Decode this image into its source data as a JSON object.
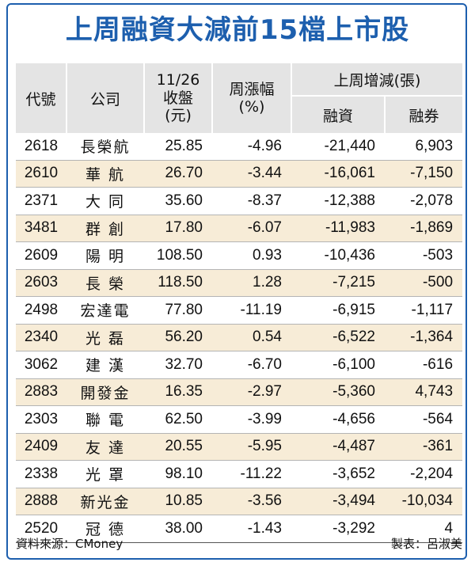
{
  "title": "上周融資大減前15檔上市股",
  "headers": {
    "code": "代號",
    "company": "公司",
    "close_line1": "11/26",
    "close_line2": "收盤",
    "close_line3": "(元)",
    "change_line1": "周漲幅",
    "change_line2": "(%)",
    "weekly_group": "上周增減(張)",
    "margin": "融資",
    "short": "融券"
  },
  "rows": [
    {
      "code": "2618",
      "company": "長榮航",
      "close": "25.85",
      "change": "-4.96",
      "margin": "-21,440",
      "short": "6,903"
    },
    {
      "code": "2610",
      "company": "華 航",
      "close": "26.70",
      "change": "-3.44",
      "margin": "-16,061",
      "short": "-7,150"
    },
    {
      "code": "2371",
      "company": "大 同",
      "close": "35.60",
      "change": "-8.37",
      "margin": "-12,388",
      "short": "-2,078"
    },
    {
      "code": "3481",
      "company": "群 創",
      "close": "17.80",
      "change": "-6.07",
      "margin": "-11,983",
      "short": "-1,869"
    },
    {
      "code": "2609",
      "company": "陽 明",
      "close": "108.50",
      "change": "0.93",
      "margin": "-10,436",
      "short": "-503"
    },
    {
      "code": "2603",
      "company": "長 榮",
      "close": "118.50",
      "change": "1.28",
      "margin": "-7,215",
      "short": "-500"
    },
    {
      "code": "2498",
      "company": "宏達電",
      "close": "77.80",
      "change": "-11.19",
      "margin": "-6,915",
      "short": "-1,117"
    },
    {
      "code": "2340",
      "company": "光 磊",
      "close": "56.20",
      "change": "0.54",
      "margin": "-6,522",
      "short": "-1,364"
    },
    {
      "code": "3062",
      "company": "建 漢",
      "close": "32.70",
      "change": "-6.70",
      "margin": "-6,100",
      "short": "-616"
    },
    {
      "code": "2883",
      "company": "開發金",
      "close": "16.35",
      "change": "-2.97",
      "margin": "-5,360",
      "short": "4,743"
    },
    {
      "code": "2303",
      "company": "聯 電",
      "close": "62.50",
      "change": "-3.99",
      "margin": "-4,656",
      "short": "-564"
    },
    {
      "code": "2409",
      "company": "友 達",
      "close": "20.55",
      "change": "-5.95",
      "margin": "-4,487",
      "short": "-361"
    },
    {
      "code": "2338",
      "company": "光 罩",
      "close": "98.10",
      "change": "-11.22",
      "margin": "-3,652",
      "short": "-2,204"
    },
    {
      "code": "2888",
      "company": "新光金",
      "close": "10.85",
      "change": "-3.56",
      "margin": "-3,494",
      "short": "-10,034"
    },
    {
      "code": "2520",
      "company": "冠 德",
      "close": "38.00",
      "change": "-1.43",
      "margin": "-3,292",
      "short": "4"
    }
  ],
  "footer": {
    "source": "資料來源：CMoney",
    "maker": "製表：呂淑美"
  },
  "colors": {
    "accent": "#1d5fae",
    "header_bg": "#e4e4e4",
    "alt_row_bg": "#f7ecd7"
  }
}
